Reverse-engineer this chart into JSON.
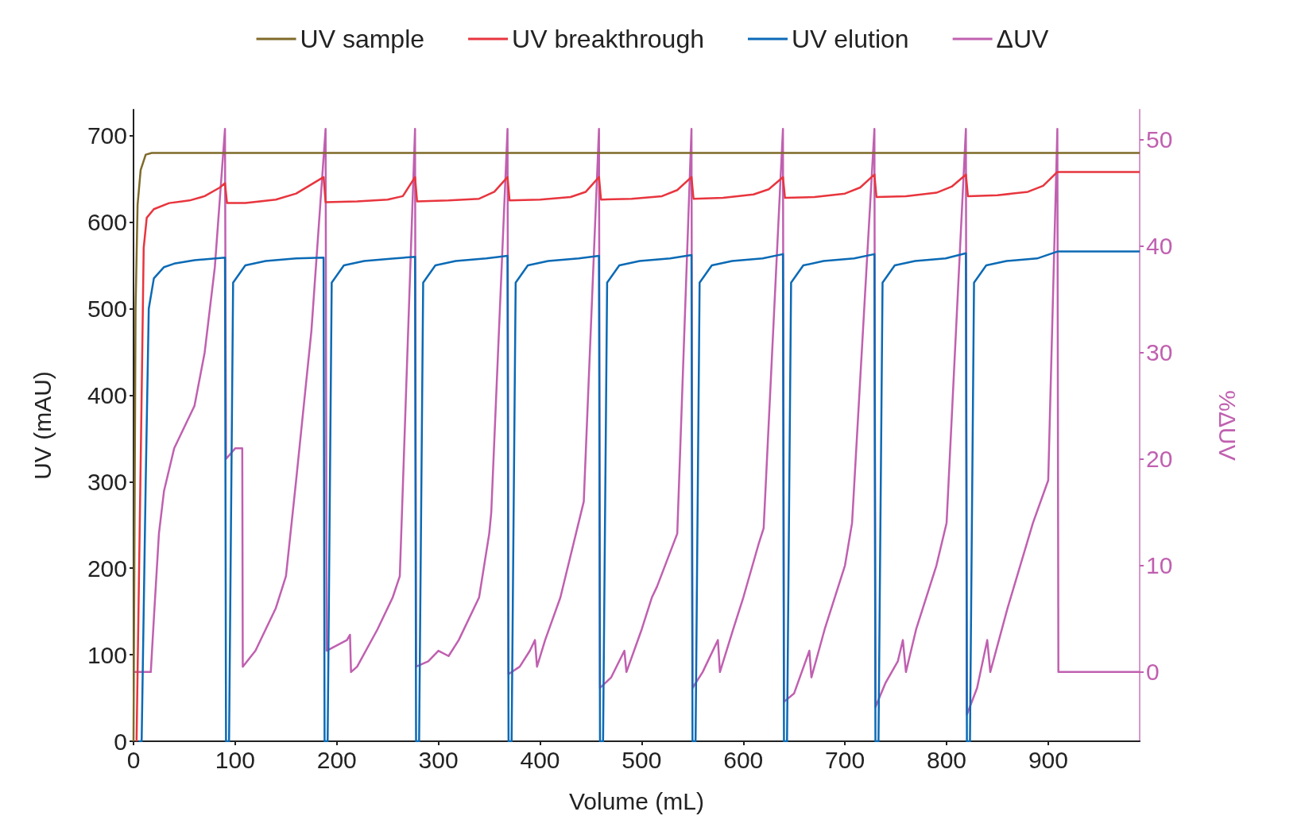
{
  "chart_data": {
    "type": "line",
    "xlabel": "Volume (mL)",
    "ylabel": "UV (mAU)",
    "y2label": "%ΔUV",
    "xlim": [
      0,
      990
    ],
    "xticks": [
      0,
      100,
      200,
      300,
      400,
      500,
      600,
      700,
      800,
      900
    ],
    "ylim": [
      0,
      730
    ],
    "yticks": [
      0,
      100,
      200,
      300,
      400,
      500,
      600,
      700
    ],
    "y2lim": [
      -6.5,
      52.8
    ],
    "y2ticks": [
      0,
      10,
      20,
      30,
      40,
      50
    ],
    "legend": "top",
    "grid": false,
    "marker": "none",
    "line_style": "solid",
    "series": [
      {
        "name": "UV sample",
        "color": "#7f6a2a",
        "x": [
          0,
          2,
          4,
          7,
          12,
          18,
          990
        ],
        "values": [
          0,
          500,
          620,
          660,
          678,
          680,
          680
        ]
      },
      {
        "name": "UV breakthrough",
        "color": "#e8353e",
        "x": [
          3,
          8,
          10,
          13,
          20,
          35,
          55,
          70,
          85,
          90,
          92,
          110,
          140,
          160,
          187,
          189,
          220,
          250,
          265,
          277,
          279,
          310,
          340,
          355,
          368,
          370,
          400,
          430,
          445,
          458,
          460,
          490,
          520,
          535,
          549,
          551,
          580,
          610,
          625,
          639,
          641,
          670,
          700,
          715,
          729,
          731,
          760,
          790,
          805,
          819,
          821,
          850,
          880,
          895,
          909,
          990
        ],
        "values": [
          0,
          400,
          570,
          605,
          615,
          622,
          625,
          630,
          640,
          645,
          622,
          622,
          626,
          633,
          652,
          623,
          624,
          626,
          630,
          652,
          624,
          625,
          627,
          635,
          652,
          625,
          626,
          629,
          635,
          652,
          626,
          627,
          630,
          637,
          652,
          627,
          628,
          632,
          638,
          652,
          628,
          629,
          633,
          640,
          655,
          629,
          630,
          634,
          641,
          655,
          630,
          631,
          635,
          642,
          658,
          658
        ]
      },
      {
        "name": "UV elution",
        "color": "#0b6ab5",
        "x": [
          5,
          8,
          12,
          15,
          20,
          30,
          40,
          60,
          90,
          91,
          94,
          98,
          110,
          130,
          160,
          187,
          188,
          191,
          195,
          207,
          227,
          257,
          277,
          278,
          281,
          285,
          297,
          317,
          347,
          368,
          369,
          372,
          376,
          388,
          408,
          438,
          458,
          459,
          462,
          466,
          478,
          498,
          528,
          549,
          550,
          553,
          557,
          569,
          589,
          619,
          639,
          640,
          643,
          647,
          659,
          679,
          709,
          729,
          730,
          733,
          737,
          749,
          769,
          799,
          819,
          820,
          823,
          827,
          839,
          859,
          889,
          909,
          990
        ],
        "values": [
          0,
          0,
          300,
          500,
          535,
          548,
          552,
          556,
          559,
          0,
          0,
          530,
          550,
          555,
          558,
          559,
          0,
          0,
          530,
          550,
          555,
          558,
          560,
          0,
          0,
          530,
          550,
          555,
          558,
          561,
          0,
          0,
          530,
          550,
          555,
          558,
          561,
          0,
          0,
          530,
          550,
          555,
          558,
          562,
          0,
          0,
          530,
          550,
          555,
          558,
          563,
          0,
          0,
          530,
          550,
          555,
          558,
          563,
          0,
          0,
          530,
          550,
          555,
          558,
          564,
          0,
          0,
          530,
          550,
          555,
          558,
          566,
          566
        ]
      },
      {
        "name": "ΔUV",
        "color": "#c060b0",
        "axis": "y2",
        "x": [
          0,
          17,
          20,
          25,
          30,
          40,
          60,
          70,
          80,
          90,
          91,
          100,
          107,
          107.5,
          120,
          140,
          150,
          160,
          175,
          189,
          190,
          200,
          210,
          213,
          214,
          220,
          240,
          255,
          262,
          277,
          278,
          290,
          300,
          310,
          320,
          340,
          350,
          352,
          368,
          369,
          380,
          390,
          395,
          397,
          405,
          420,
          443,
          458,
          459,
          470,
          483,
          485,
          500,
          510,
          515,
          535,
          549,
          550,
          560,
          575,
          577,
          590,
          600,
          615,
          620,
          639,
          640,
          650,
          665,
          667,
          680,
          700,
          707,
          729,
          730,
          740,
          752,
          757,
          760,
          770,
          790,
          800,
          819,
          820,
          830,
          840,
          843,
          860,
          885,
          900,
          909,
          910,
          990
        ],
        "values": [
          0,
          0,
          5,
          13,
          17,
          21,
          25,
          30,
          38,
          51,
          20,
          21,
          21,
          0.5,
          2,
          6,
          9,
          18,
          32,
          51,
          2,
          2.5,
          3,
          3.5,
          0,
          0.5,
          4,
          7,
          9,
          51,
          0.5,
          1,
          2,
          1.5,
          3,
          7,
          13,
          15,
          51,
          -0.2,
          0.5,
          2,
          3,
          0.5,
          3,
          7,
          16,
          51,
          -1.5,
          -0.5,
          2,
          0,
          4,
          7,
          8,
          13,
          51,
          -1.5,
          0,
          3,
          0,
          4,
          7,
          12,
          13.5,
          51,
          -2.8,
          -2,
          2,
          -0.5,
          4,
          10,
          14,
          51,
          -3.3,
          -1,
          1,
          3,
          0,
          4,
          10,
          14,
          51,
          -4,
          -1.5,
          3,
          0,
          6,
          14,
          18,
          51,
          0,
          0
        ]
      }
    ]
  }
}
